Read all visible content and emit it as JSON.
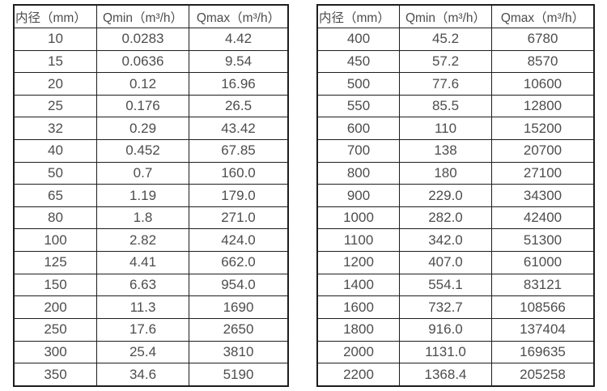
{
  "colors": {
    "background": "#ffffff",
    "border": "#1d1d1d",
    "text": "#4d4d4d"
  },
  "tables": [
    {
      "name": "flow-spec-table-small-diameters",
      "headers": [
        "内径（mm）",
        "Qmin（m³/h）",
        "Qmax（m³/h）"
      ],
      "rows": [
        [
          "10",
          "0.0283",
          "4.42"
        ],
        [
          "15",
          "0.0636",
          "9.54"
        ],
        [
          "20",
          "0.12",
          "16.96"
        ],
        [
          "25",
          "0.176",
          "26.5"
        ],
        [
          "32",
          "0.29",
          "43.42"
        ],
        [
          "40",
          "0.452",
          "67.85"
        ],
        [
          "50",
          "0.7",
          "160.0"
        ],
        [
          "65",
          "1.19",
          "179.0"
        ],
        [
          "80",
          "1.8",
          "271.0"
        ],
        [
          "100",
          "2.82",
          "424.0"
        ],
        [
          "125",
          "4.41",
          "662.0"
        ],
        [
          "150",
          "6.63",
          "954.0"
        ],
        [
          "200",
          "11.3",
          "1690"
        ],
        [
          "250",
          "17.6",
          "2650"
        ],
        [
          "300",
          "25.4",
          "3810"
        ],
        [
          "350",
          "34.6",
          "5190"
        ]
      ]
    },
    {
      "name": "flow-spec-table-large-diameters",
      "headers": [
        "内径（mm）",
        "Qmin（m³/h）",
        "Qmax（m³/h）"
      ],
      "rows": [
        [
          "400",
          "45.2",
          "6780"
        ],
        [
          "450",
          "57.2",
          "8570"
        ],
        [
          "500",
          "77.6",
          "10600"
        ],
        [
          "550",
          "85.5",
          "12800"
        ],
        [
          "600",
          "110",
          "15200"
        ],
        [
          "700",
          "138",
          "20700"
        ],
        [
          "800",
          "180",
          "27100"
        ],
        [
          "900",
          "229.0",
          "34300"
        ],
        [
          "1000",
          "282.0",
          "42400"
        ],
        [
          "1100",
          "342.0",
          "51300"
        ],
        [
          "1200",
          "407.0",
          "61000"
        ],
        [
          "1400",
          "554.1",
          "83121"
        ],
        [
          "1600",
          "732.7",
          "108566"
        ],
        [
          "1800",
          "916.0",
          "137404"
        ],
        [
          "2000",
          "1131.0",
          "169635"
        ],
        [
          "2200",
          "1368.4",
          "205258"
        ]
      ]
    }
  ]
}
